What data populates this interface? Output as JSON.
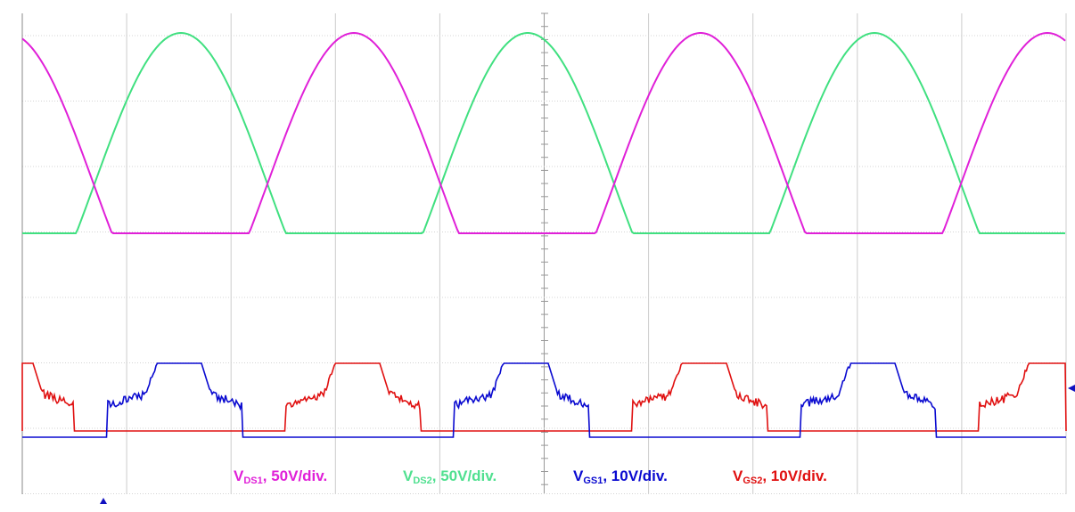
{
  "legend": [
    {
      "symbol": "V",
      "subscript": "DS1",
      "scale": ", 50V/div."
    },
    {
      "symbol": "V",
      "subscript": "DS2",
      "scale": ", 50V/div."
    },
    {
      "symbol": "V",
      "subscript": "GS1",
      "scale": ", 10V/div."
    },
    {
      "symbol": "V",
      "subscript": "GS2",
      "scale": ", 10V/div."
    }
  ]
}
